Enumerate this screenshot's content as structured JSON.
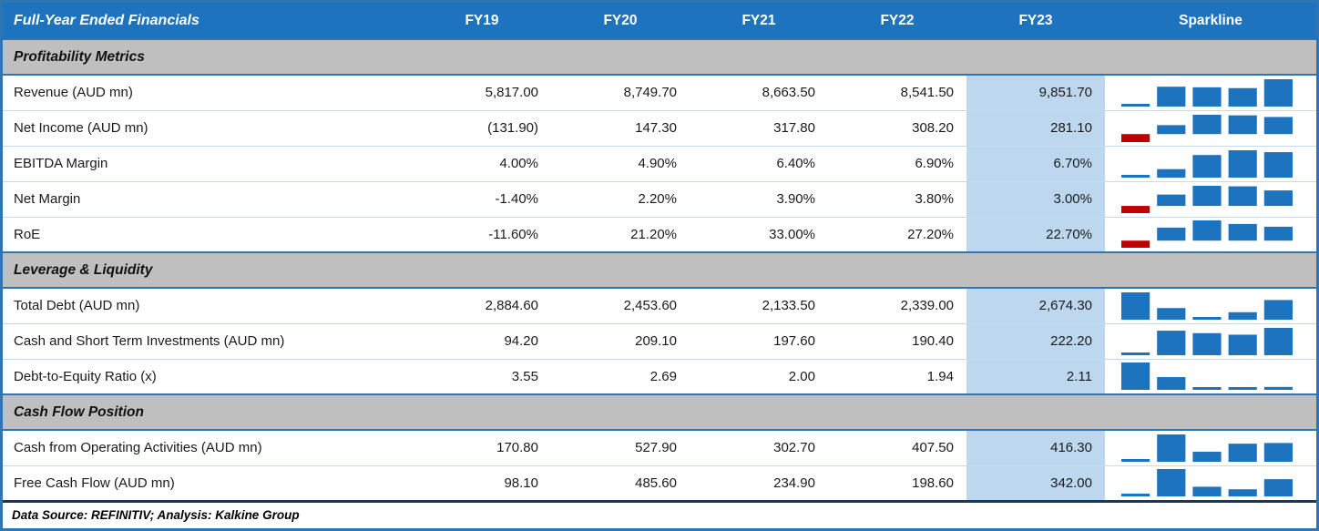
{
  "chart_data": {
    "type": "table",
    "title": "Full-Year Ended Financials",
    "columns": [
      "FY19",
      "FY20",
      "FY21",
      "FY22",
      "FY23"
    ],
    "sparkline_header": "Sparkline",
    "highlight_column": "FY23",
    "sections": [
      {
        "title": "Profitability Metrics",
        "rows": [
          {
            "label": "Revenue (AUD mn)",
            "display": [
              "5,817.00",
              "8,749.70",
              "8,663.50",
              "8,541.50",
              "9,851.70"
            ],
            "values": [
              5817.0,
              8749.7,
              8663.5,
              8541.5,
              9851.7
            ]
          },
          {
            "label": "Net Income (AUD mn)",
            "display": [
              "(131.90)",
              "147.30",
              "317.80",
              "308.20",
              "281.10"
            ],
            "values": [
              -131.9,
              147.3,
              317.8,
              308.2,
              281.1
            ]
          },
          {
            "label": "EBITDA Margin",
            "display": [
              "4.00%",
              "4.90%",
              "6.40%",
              "6.90%",
              "6.70%"
            ],
            "values": [
              4.0,
              4.9,
              6.4,
              6.9,
              6.7
            ]
          },
          {
            "label": "Net Margin",
            "display": [
              "-1.40%",
              "2.20%",
              "3.90%",
              "3.80%",
              "3.00%"
            ],
            "values": [
              -1.4,
              2.2,
              3.9,
              3.8,
              3.0
            ]
          },
          {
            "label": "RoE",
            "display": [
              "-11.60%",
              "21.20%",
              "33.00%",
              "27.20%",
              "22.70%"
            ],
            "values": [
              -11.6,
              21.2,
              33.0,
              27.2,
              22.7
            ]
          }
        ]
      },
      {
        "title": "Leverage & Liquidity",
        "rows": [
          {
            "label": "Total Debt (AUD mn)",
            "display": [
              "2,884.60",
              "2,453.60",
              "2,133.50",
              "2,339.00",
              "2,674.30"
            ],
            "values": [
              2884.6,
              2453.6,
              2133.5,
              2339.0,
              2674.3
            ]
          },
          {
            "label": "Cash and Short Term Investments (AUD mn)",
            "display": [
              "94.20",
              "209.10",
              "197.60",
              "190.40",
              "222.20"
            ],
            "values": [
              94.2,
              209.1,
              197.6,
              190.4,
              222.2
            ]
          },
          {
            "label": "Debt-to-Equity Ratio (x)",
            "display": [
              "3.55",
              "2.69",
              "2.00",
              "1.94",
              "2.11"
            ],
            "values": [
              3.55,
              2.69,
              2.0,
              1.94,
              2.11
            ]
          }
        ]
      },
      {
        "title": "Cash Flow Position",
        "rows": [
          {
            "label": "Cash from Operating Activities (AUD mn)",
            "display": [
              "170.80",
              "527.90",
              "302.70",
              "407.50",
              "416.30"
            ],
            "values": [
              170.8,
              527.9,
              302.7,
              407.5,
              416.3
            ]
          },
          {
            "label": "Free Cash Flow (AUD mn)",
            "display": [
              "98.10",
              "485.60",
              "234.90",
              "198.60",
              "342.00"
            ],
            "values": [
              98.1,
              485.6,
              234.9,
              198.6,
              342.0
            ]
          }
        ]
      }
    ]
  },
  "footer": {
    "text": "Data Source: REFINITIV; Analysis: Kalkine Group"
  },
  "colors": {
    "header_bg": "#1E73BE",
    "section_bg": "#BFBFBF",
    "section_border": "#2E75B6",
    "highlight": "#BDD7EE",
    "grid": "#C5D9F1",
    "border": "#2E75B6",
    "table_bottom": "#17375E",
    "spark_positive": "#1E73BE",
    "spark_negative": "#C00000"
  }
}
